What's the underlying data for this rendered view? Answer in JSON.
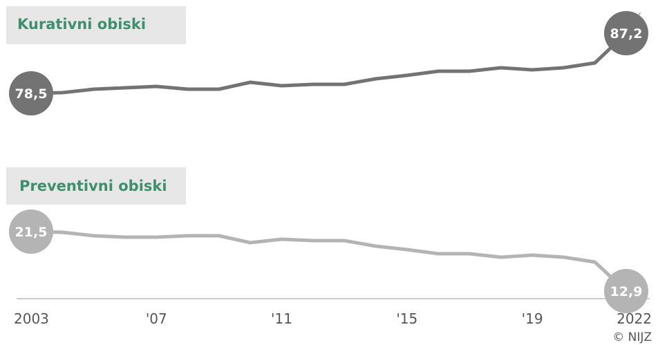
{
  "chart_data": {
    "type": "line",
    "unit": "%",
    "x": [
      2003,
      2004,
      2005,
      2006,
      2007,
      2008,
      2009,
      2010,
      2011,
      2012,
      2013,
      2014,
      2015,
      2016,
      2017,
      2018,
      2019,
      2020,
      2021,
      2022
    ],
    "x_tick_labels": [
      "2003",
      "'07",
      "'11",
      "'15",
      "'19",
      "2022"
    ],
    "x_tick_values": [
      2003,
      2007,
      2011,
      2015,
      2019,
      2022
    ],
    "series": [
      {
        "name": "Kurativni obiski",
        "color": "#737373",
        "values": [
          78.5,
          78.6,
          79.1,
          79.3,
          79.5,
          79.1,
          79.1,
          80.1,
          79.6,
          79.8,
          79.8,
          80.6,
          81.1,
          81.7,
          81.7,
          82.2,
          81.9,
          82.2,
          82.9,
          87.2
        ],
        "start_label": "78,5",
        "end_label": "87,2"
      },
      {
        "name": "Preventivni obiski",
        "color": "#b4b4b4",
        "values": [
          21.5,
          21.4,
          20.9,
          20.7,
          20.7,
          20.9,
          20.9,
          19.9,
          20.4,
          20.2,
          20.2,
          19.4,
          18.9,
          18.3,
          18.3,
          17.8,
          18.1,
          17.8,
          17.1,
          12.9
        ],
        "start_label": "21,5",
        "end_label": "12,9"
      }
    ]
  },
  "footer": {
    "copyright": "© NIJZ"
  },
  "colors": {
    "label_background": "#e7e7e7",
    "label_text": "#3f8f6e",
    "axis": "#cccccc"
  }
}
